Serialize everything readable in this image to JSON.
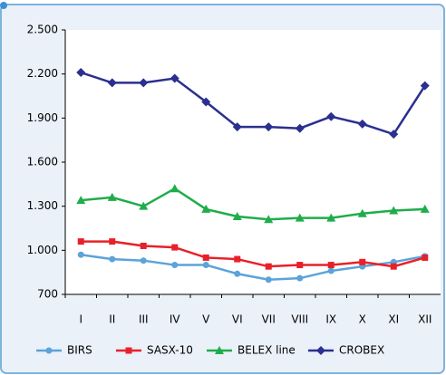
{
  "chart_data": {
    "type": "line",
    "categories": [
      "I",
      "II",
      "III",
      "IV",
      "V",
      "VI",
      "VII",
      "VIII",
      "IX",
      "X",
      "XI",
      "XII"
    ],
    "series": [
      {
        "name": "BIRS",
        "color": "#5ba3d9",
        "marker": "circle",
        "values": [
          970,
          940,
          930,
          900,
          900,
          840,
          800,
          810,
          860,
          890,
          920,
          960
        ]
      },
      {
        "name": "SASX-10",
        "color": "#e8202a",
        "marker": "square",
        "values": [
          1060,
          1060,
          1030,
          1020,
          950,
          940,
          890,
          900,
          900,
          920,
          890,
          950
        ]
      },
      {
        "name": "BELEX line",
        "color": "#1fad4a",
        "marker": "triangle",
        "values": [
          1340,
          1360,
          1300,
          1420,
          1280,
          1230,
          1210,
          1220,
          1220,
          1250,
          1270,
          1280
        ]
      },
      {
        "name": "CROBEX",
        "color": "#2b2f8f",
        "marker": "diamond",
        "values": [
          2210,
          2140,
          2140,
          2170,
          2010,
          1840,
          1840,
          1830,
          1910,
          1860,
          1790,
          2120
        ]
      }
    ],
    "ylim": [
      700,
      2500
    ],
    "yticks": [
      700,
      {
        "value": 1000,
        "label": "1.000"
      },
      {
        "value": 1300,
        "label": "1.300"
      },
      {
        "value": 1600,
        "label": "1.600"
      },
      {
        "value": 1900,
        "label": "1.900"
      },
      {
        "value": 2200,
        "label": "2.200"
      },
      {
        "value": 2500,
        "label": "2.500"
      }
    ],
    "grid": false,
    "legend": "bottom"
  }
}
